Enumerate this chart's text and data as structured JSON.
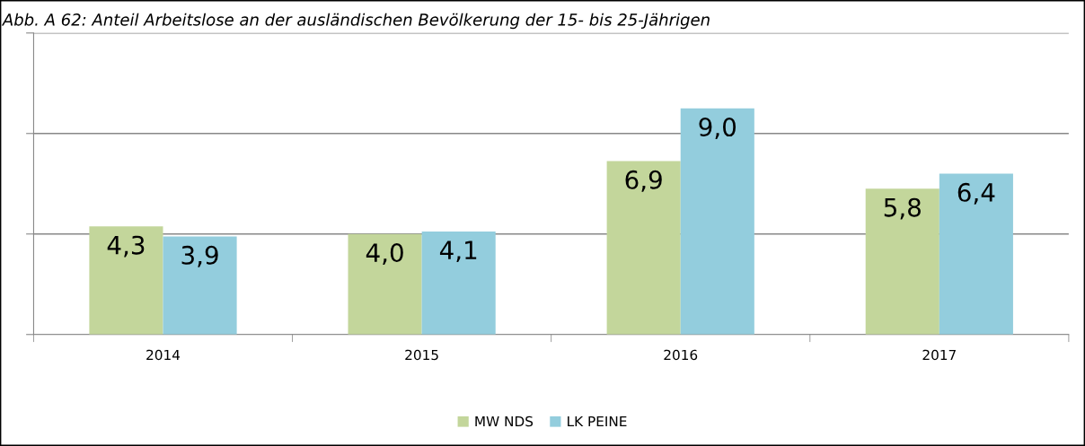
{
  "chart_data": {
    "type": "bar",
    "title": "Abb. A 62: Anteil Arbeitslose an der ausländischen Bevölkerung der 15- bis 25-Jährigen",
    "categories": [
      "2014",
      "2015",
      "2016",
      "2017"
    ],
    "series": [
      {
        "name": "MW NDS",
        "color": "#c3d69b",
        "values": [
          4.3,
          4.0,
          6.9,
          5.8
        ],
        "value_labels": [
          "4,3",
          "4,0",
          "6,9",
          "5,8"
        ]
      },
      {
        "name": "LK PEINE",
        "color": "#93cddd",
        "values": [
          3.9,
          4.1,
          9.0,
          6.4
        ],
        "value_labels": [
          "3,9",
          "4,1",
          "9,0",
          "6,4"
        ]
      }
    ],
    "ylim": [
      0,
      12
    ],
    "yticks": [
      {
        "value": 0,
        "label": null
      },
      {
        "value": 4,
        "label": null
      },
      {
        "value": 8,
        "label": null
      },
      {
        "value": 12,
        "label": null
      }
    ],
    "tick_labels": "x",
    "grid": "y",
    "legend": "bottom"
  }
}
